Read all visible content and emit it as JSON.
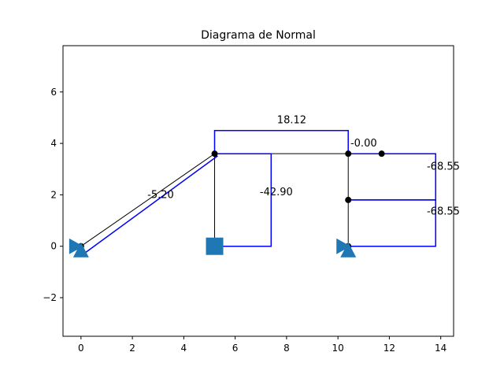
{
  "title": "Diagrama de Normal",
  "chart_data": {
    "type": "diagram",
    "xlim": [
      -0.7,
      14.5
    ],
    "ylim": [
      -3.5,
      7.8
    ],
    "xticks": [
      0,
      2,
      4,
      6,
      8,
      10,
      12,
      14
    ],
    "yticks": [
      -2,
      0,
      2,
      4,
      6
    ],
    "grid": false,
    "structure": {
      "nodes": [
        [
          0,
          0
        ],
        [
          5.2,
          3.6
        ],
        [
          10.4,
          3.6
        ],
        [
          11.7,
          3.6
        ],
        [
          10.4,
          1.8
        ],
        [
          10.4,
          0
        ],
        [
          5.2,
          0
        ]
      ],
      "members": [
        [
          0,
          1
        ],
        [
          1,
          2
        ],
        [
          2,
          3
        ],
        [
          2,
          4
        ],
        [
          4,
          5
        ],
        [
          1,
          6
        ]
      ],
      "node_markers": [
        0,
        1,
        2,
        3,
        4,
        5
      ]
    },
    "supports": [
      {
        "type": "pinned",
        "node": 0
      },
      {
        "type": "pinned",
        "node": 5
      },
      {
        "type": "fixed",
        "node": 6
      }
    ],
    "diagram_polylines": [
      [
        [
          0,
          0
        ],
        [
          0.1,
          -0.3
        ],
        [
          5.3,
          3.5
        ],
        [
          5.2,
          3.6
        ]
      ],
      [
        [
          5.2,
          3.6
        ],
        [
          5.2,
          4.5
        ],
        [
          10.4,
          4.5
        ],
        [
          10.4,
          3.6
        ]
      ],
      [
        [
          5.2,
          3.6
        ],
        [
          7.4,
          3.6
        ],
        [
          7.4,
          0
        ],
        [
          5.2,
          0
        ]
      ],
      [
        [
          10.4,
          3.6
        ],
        [
          13.8,
          3.6
        ],
        [
          13.8,
          1.8
        ],
        [
          10.4,
          1.8
        ]
      ],
      [
        [
          10.4,
          1.8
        ],
        [
          13.8,
          1.8
        ],
        [
          13.8,
          0
        ],
        [
          10.4,
          0
        ]
      ]
    ],
    "labels": [
      {
        "text": "-5.20",
        "x": 3.1,
        "y": 2.0
      },
      {
        "text": "18.12",
        "x": 8.2,
        "y": 4.9
      },
      {
        "text": "-0.00",
        "x": 11.0,
        "y": 4.0
      },
      {
        "text": "-42.90",
        "x": 7.6,
        "y": 2.1
      },
      {
        "text": "-68.55",
        "x": 14.1,
        "y": 3.1
      },
      {
        "text": "-68.55",
        "x": 14.1,
        "y": 1.35
      }
    ],
    "colors": {
      "diagram": "#0000ff",
      "structure": "#000000",
      "support": "#1f77b4",
      "node": "#000000"
    }
  }
}
